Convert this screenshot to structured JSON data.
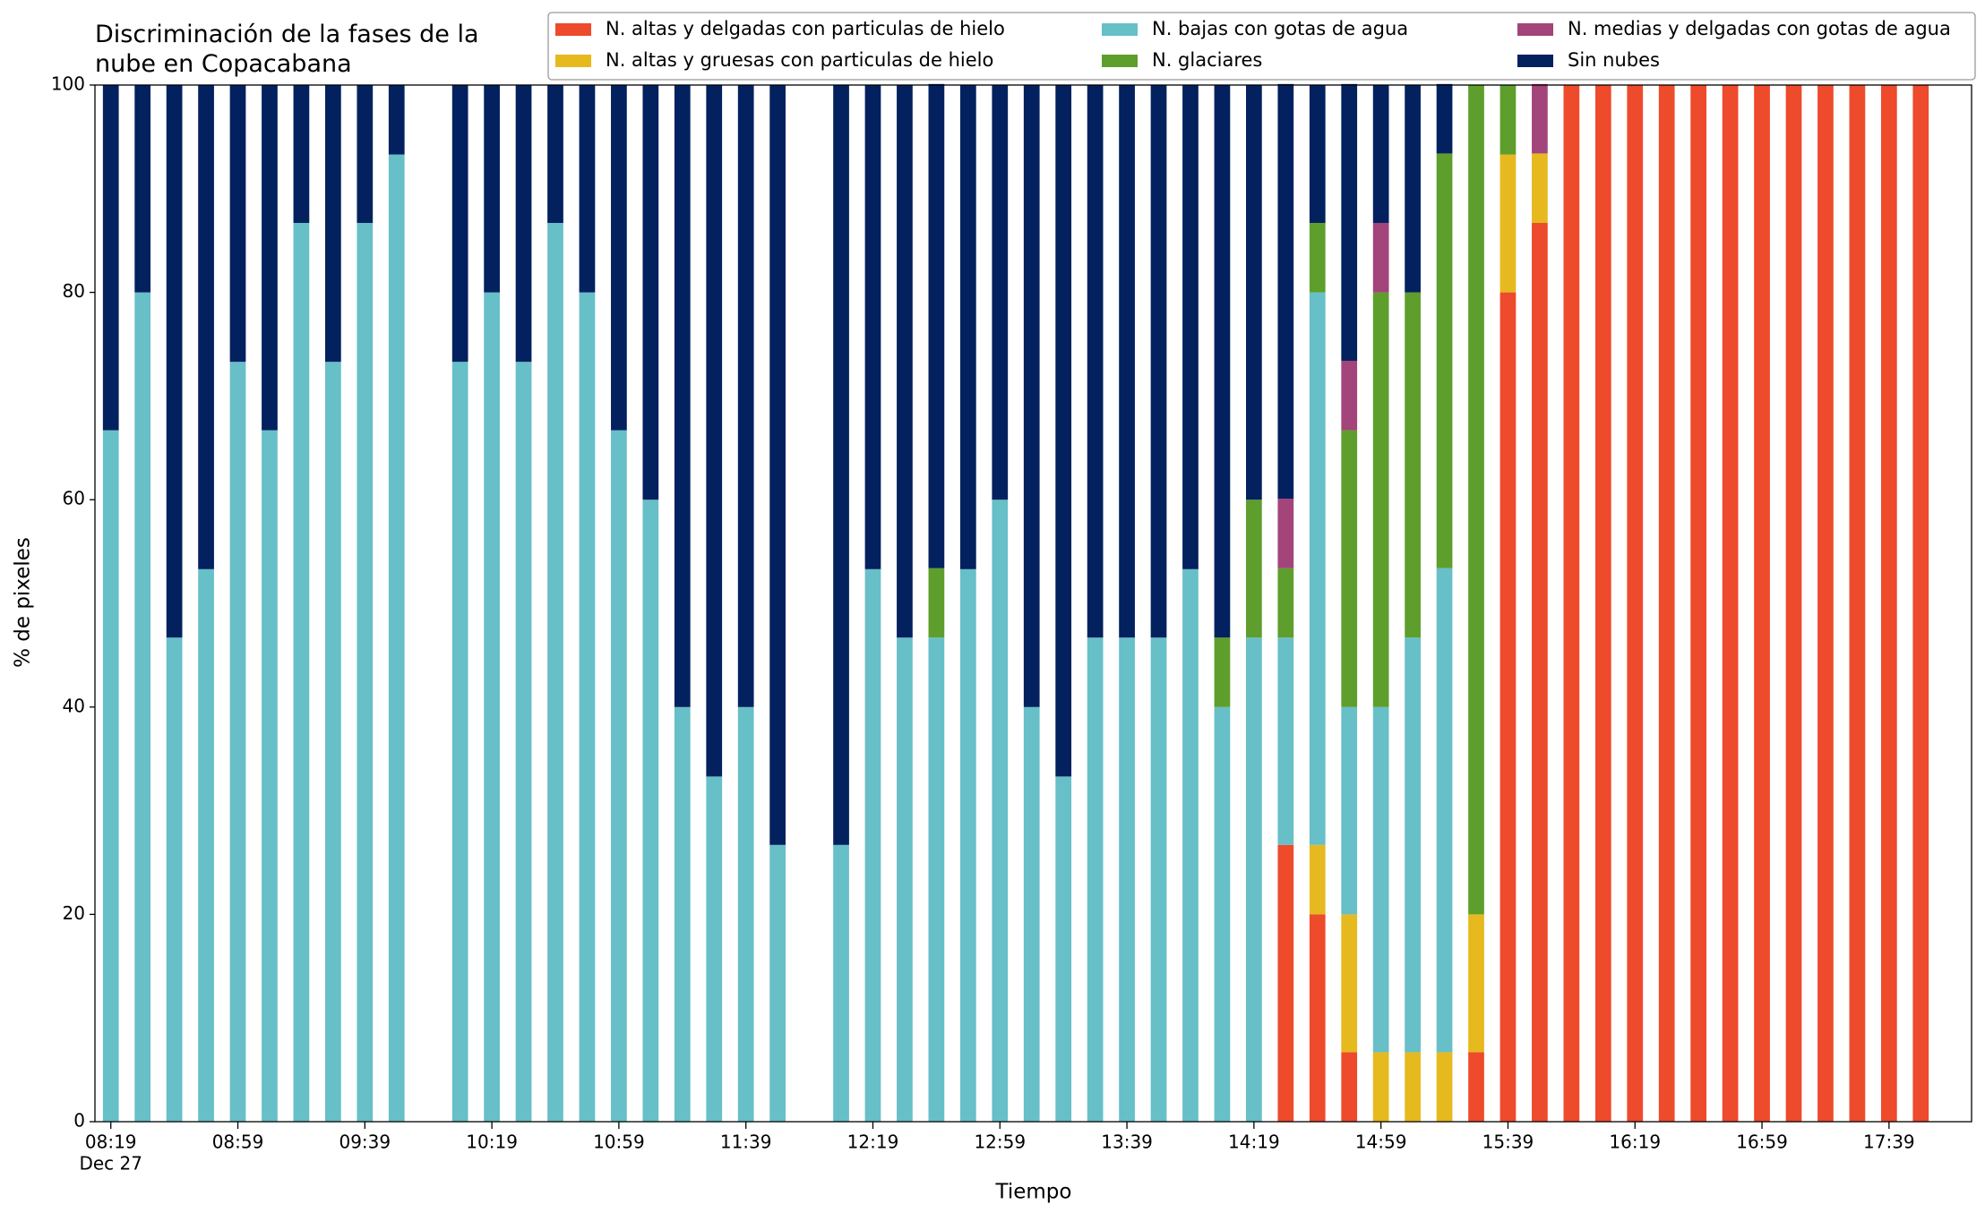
{
  "chart_data": {
    "type": "stacked_bar",
    "title": "Discriminación de la fases de la\nnube en Copacabana",
    "xlabel": "Tiempo",
    "ylabel": "% de pixeles",
    "x_date_label": "Dec 27",
    "x": [
      "08:19",
      "08:29",
      "08:39",
      "08:49",
      "08:59",
      "09:09",
      "09:19",
      "09:29",
      "09:39",
      "09:49",
      "10:09",
      "10:19",
      "10:29",
      "10:39",
      "10:49",
      "10:59",
      "11:09",
      "11:19",
      "11:29",
      "11:39",
      "11:49",
      "12:09",
      "12:19",
      "12:29",
      "12:39",
      "12:49",
      "12:59",
      "13:09",
      "13:19",
      "13:29",
      "13:39",
      "13:49",
      "13:59",
      "14:09",
      "14:19",
      "14:29",
      "14:39",
      "14:49",
      "14:59",
      "15:09",
      "15:19",
      "15:29",
      "15:39",
      "15:49",
      "15:59",
      "16:09",
      "16:19",
      "16:29",
      "16:39",
      "16:49",
      "16:59",
      "17:09",
      "17:19",
      "17:29",
      "17:39",
      "17:49"
    ],
    "series": [
      {
        "name": "N. altas y delgadas con particulas de hielo",
        "color": "#ee4a2c",
        "values": [
          0,
          0,
          0,
          0,
          0,
          0,
          0,
          0,
          0,
          0,
          0,
          0,
          0,
          0,
          0,
          0,
          0,
          0,
          0,
          0,
          0,
          0,
          0,
          0,
          0,
          0,
          0,
          0,
          0,
          0,
          0,
          0,
          0,
          0,
          0,
          26.7,
          20,
          6.7,
          0,
          0,
          0,
          6.7,
          80,
          86.7,
          100,
          100,
          100,
          100,
          100,
          100,
          100,
          100,
          100,
          100,
          100,
          100
        ]
      },
      {
        "name": "N. altas y gruesas con particulas de hielo",
        "color": "#e6b91e",
        "values": [
          0,
          0,
          0,
          0,
          0,
          0,
          0,
          0,
          0,
          0,
          0,
          0,
          0,
          0,
          0,
          0,
          0,
          0,
          0,
          0,
          0,
          0,
          0,
          0,
          0,
          0,
          0,
          0,
          0,
          0,
          0,
          0,
          0,
          0,
          0,
          0,
          6.7,
          13.3,
          6.7,
          6.7,
          6.7,
          13.3,
          13.3,
          6.7,
          0,
          0,
          0,
          0,
          0,
          0,
          0,
          0,
          0,
          0,
          0,
          0
        ]
      },
      {
        "name": "N. bajas con gotas de agua",
        "color": "#67bfc8",
        "values": [
          66.7,
          80,
          46.7,
          53.3,
          73.3,
          66.7,
          86.7,
          73.3,
          86.7,
          93.3,
          73.3,
          80,
          73.3,
          86.7,
          80,
          66.7,
          60,
          40,
          33.3,
          40,
          26.7,
          26.7,
          53.3,
          46.7,
          46.7,
          53.3,
          60,
          40,
          33.3,
          46.7,
          46.7,
          46.7,
          53.3,
          40,
          46.7,
          20,
          53.3,
          20,
          33.3,
          40,
          46.7,
          0,
          0,
          0,
          0,
          0,
          0,
          0,
          0,
          0,
          0,
          0,
          0,
          0,
          0,
          0
        ]
      },
      {
        "name": "N. glaciares",
        "color": "#5e9e2c",
        "values": [
          0,
          0,
          0,
          0,
          0,
          0,
          0,
          0,
          0,
          0,
          0,
          0,
          0,
          0,
          0,
          0,
          0,
          0,
          0,
          0,
          0,
          0,
          0,
          0,
          6.7,
          0,
          0,
          0,
          0,
          0,
          0,
          0,
          0,
          6.7,
          13.3,
          6.7,
          6.7,
          26.7,
          40,
          33.3,
          40,
          80,
          6.7,
          0,
          0,
          0,
          0,
          0,
          0,
          0,
          0,
          0,
          0,
          0,
          0,
          0
        ]
      },
      {
        "name": "N. medias y delgadas con gotas de agua",
        "color": "#a3447a",
        "values": [
          0,
          0,
          0,
          0,
          0,
          0,
          0,
          0,
          0,
          0,
          0,
          0,
          0,
          0,
          0,
          0,
          0,
          0,
          0,
          0,
          0,
          0,
          0,
          0,
          0,
          0,
          0,
          0,
          0,
          0,
          0,
          0,
          0,
          0,
          0,
          6.7,
          0,
          6.7,
          6.7,
          0,
          0,
          0,
          0,
          6.7,
          0,
          0,
          0,
          0,
          0,
          0,
          0,
          0,
          0,
          0,
          0,
          0
        ]
      },
      {
        "name": "Sin nubes",
        "color": "#03215e",
        "values": [
          33.3,
          20,
          53.3,
          46.7,
          26.7,
          33.3,
          13.3,
          26.7,
          13.3,
          6.7,
          26.7,
          20,
          26.7,
          13.3,
          20,
          33.3,
          40,
          60,
          66.7,
          60,
          73.3,
          73.3,
          46.7,
          53.3,
          46.7,
          46.7,
          40,
          60,
          66.7,
          53.3,
          53.3,
          53.3,
          46.7,
          53.3,
          40,
          40,
          13.3,
          26.7,
          13.3,
          20,
          6.7,
          0,
          0,
          0,
          0,
          0,
          0,
          0,
          0,
          0,
          0,
          0,
          0,
          0,
          0,
          0
        ]
      }
    ],
    "xlim": [
      "08:14",
      "18:05"
    ],
    "xticks": [
      "08:19",
      "08:59",
      "09:39",
      "10:19",
      "10:59",
      "11:39",
      "12:19",
      "12:59",
      "13:39",
      "14:19",
      "14:59",
      "15:39",
      "16:19",
      "16:59",
      "17:39"
    ],
    "ylim": [
      0,
      100
    ],
    "yticks": [
      0,
      20,
      40,
      60,
      80,
      100
    ]
  }
}
